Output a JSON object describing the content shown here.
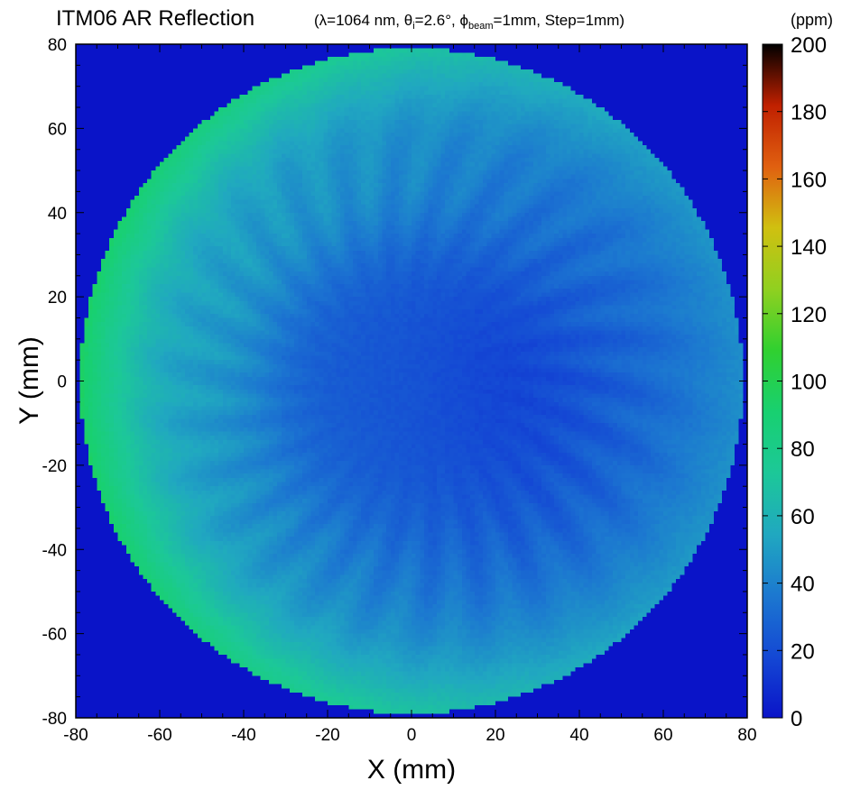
{
  "chart_data": {
    "type": "heatmap",
    "title": {
      "main": "ITM06 AR Reflection",
      "params": {
        "lambda_symbol": "λ",
        "lambda": "=1064 nm,",
        "theta_symbol": "θ",
        "theta_sub": "i",
        "theta": "=2.6°,",
        "phi_symbol": "ϕ",
        "phi_sub": "beam",
        "phi": "=1mm,",
        "step": "Step=1mm"
      }
    },
    "xlabel": "X (mm)",
    "ylabel": "Y (mm)",
    "xlim": [
      -80,
      80
    ],
    "ylim": [
      -80,
      80
    ],
    "xticks": [
      "-80",
      "-60",
      "-40",
      "-20",
      "0",
      "20",
      "40",
      "60",
      "80"
    ],
    "yticks": [
      "80",
      "60",
      "40",
      "20",
      "0",
      "-20",
      "-40",
      "-60",
      "-80"
    ],
    "colorbar": {
      "unit": "(ppm)",
      "range": [
        0,
        200
      ],
      "ticks": [
        "200",
        "180",
        "160",
        "140",
        "120",
        "100",
        "80",
        "60",
        "40",
        "20",
        "0"
      ]
    },
    "map": {
      "aperture_center_mm": [
        0,
        0
      ],
      "aperture_radius_mm": 79,
      "outside_value_ppm": 2,
      "center_value_ppm": 25,
      "left_edge_value_ppm": 95,
      "right_edge_value_ppm": 45,
      "grid_step_mm": 1
    }
  },
  "colors": {
    "outside": "#0a14c8",
    "scale": [
      "#0a14c8",
      "#1448d4",
      "#1c78d0",
      "#20a8c0",
      "#1cc898",
      "#18d070",
      "#30d030",
      "#90d020",
      "#d0c010",
      "#e06010",
      "#c02000",
      "#000000"
    ]
  }
}
